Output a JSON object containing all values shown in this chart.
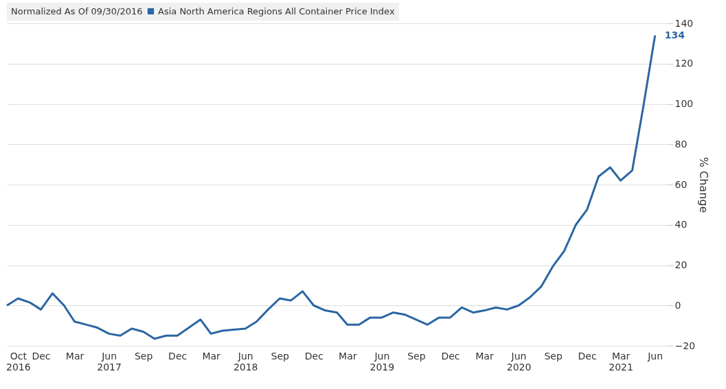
{
  "chart_data": {
    "type": "line",
    "legend_title": "Normalized As Of 09/30/2016",
    "ylabel": "% Change",
    "x": [
      "2016-09",
      "2016-10",
      "2016-11",
      "2016-12",
      "2017-01",
      "2017-02",
      "2017-03",
      "2017-04",
      "2017-05",
      "2017-06",
      "2017-07",
      "2017-08",
      "2017-09",
      "2017-10",
      "2017-11",
      "2017-12",
      "2018-01",
      "2018-02",
      "2018-03",
      "2018-04",
      "2018-05",
      "2018-06",
      "2018-07",
      "2018-08",
      "2018-09",
      "2018-10",
      "2018-11",
      "2018-12",
      "2019-01",
      "2019-02",
      "2019-03",
      "2019-04",
      "2019-05",
      "2019-06",
      "2019-07",
      "2019-08",
      "2019-09",
      "2019-10",
      "2019-11",
      "2019-12",
      "2020-01",
      "2020-02",
      "2020-03",
      "2020-04",
      "2020-05",
      "2020-06",
      "2020-07",
      "2020-08",
      "2020-09",
      "2020-10",
      "2020-11",
      "2020-12",
      "2021-01",
      "2021-02",
      "2021-03",
      "2021-04",
      "2021-05",
      "2021-06"
    ],
    "series": [
      {
        "name": "Asia North America Regions All Container Price Index",
        "color": "#2a66a3",
        "values": [
          0,
          3.5,
          1.5,
          -2,
          6,
          0,
          -8,
          -9.5,
          -11,
          -14,
          -15,
          -11.5,
          -13,
          -16.5,
          -15,
          -15,
          -11,
          -7,
          -14,
          -12.5,
          -12,
          -11.5,
          -8,
          -2,
          3.5,
          2.5,
          7,
          0,
          -2.5,
          -3.5,
          -9.5,
          -9.5,
          -6,
          -6,
          -3.5,
          -4.5,
          -7,
          -9.5,
          -6,
          -6,
          -1,
          -3.5,
          -2.5,
          -1,
          -2,
          0,
          4,
          9.5,
          19.5,
          27,
          40,
          47.5,
          64,
          68.5,
          62,
          67,
          99,
          134
        ],
        "value_labels": [
          null,
          null,
          null,
          null,
          null,
          null,
          null,
          null,
          null,
          null,
          null,
          null,
          null,
          null,
          null,
          null,
          null,
          null,
          null,
          null,
          null,
          null,
          null,
          null,
          null,
          null,
          null,
          null,
          null,
          null,
          null,
          null,
          null,
          null,
          null,
          null,
          null,
          null,
          null,
          null,
          null,
          null,
          null,
          null,
          null,
          null,
          null,
          null,
          null,
          null,
          null,
          null,
          null,
          null,
          null,
          null,
          null,
          "134"
        ]
      }
    ],
    "xlim": [
      "2016-09",
      "2021-07"
    ],
    "xticks": [
      {
        "value": "2016-10",
        "label": "Oct 2016"
      },
      {
        "value": "2016-12",
        "label": "Dec"
      },
      {
        "value": "2017-03",
        "label": "Mar"
      },
      {
        "value": "2017-06",
        "label": "Jun 2017"
      },
      {
        "value": "2017-09",
        "label": "Sep"
      },
      {
        "value": "2017-12",
        "label": "Dec"
      },
      {
        "value": "2018-03",
        "label": "Mar"
      },
      {
        "value": "2018-06",
        "label": "Jun 2018"
      },
      {
        "value": "2018-09",
        "label": "Sep"
      },
      {
        "value": "2018-12",
        "label": "Dec"
      },
      {
        "value": "2019-03",
        "label": "Mar"
      },
      {
        "value": "2019-06",
        "label": "Jun 2019"
      },
      {
        "value": "2019-09",
        "label": "Sep"
      },
      {
        "value": "2019-12",
        "label": "Dec"
      },
      {
        "value": "2020-03",
        "label": "Mar"
      },
      {
        "value": "2020-06",
        "label": "Jun 2020"
      },
      {
        "value": "2020-09",
        "label": "Sep"
      },
      {
        "value": "2020-12",
        "label": "Dec"
      },
      {
        "value": "2021-03",
        "label": "Mar 2021"
      },
      {
        "value": "2021-06",
        "label": "Jun"
      }
    ],
    "ylim": [
      -20,
      140
    ],
    "yticks": [
      -20,
      0,
      20,
      40,
      60,
      80,
      100,
      120,
      140
    ],
    "grid": "y",
    "legend": "top",
    "marker": "none",
    "line_style": "solid"
  }
}
